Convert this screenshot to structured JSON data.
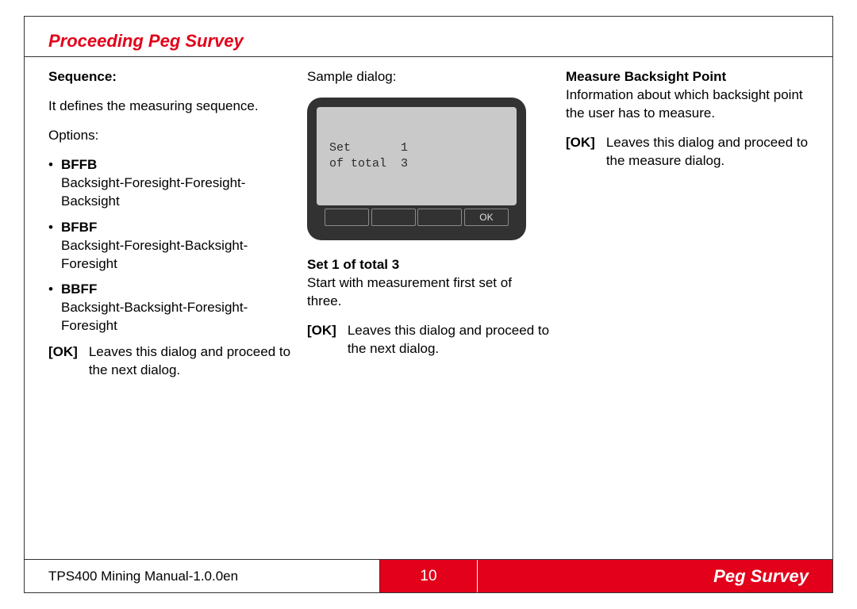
{
  "title": "Proceeding Peg Survey",
  "col1": {
    "heading": "Sequence:",
    "intro": "It defines the measuring sequence.",
    "options_label": "Options:",
    "options": [
      {
        "code": "BFFB",
        "desc": "Backsight-Foresight-Foresight-Backsight"
      },
      {
        "code": "BFBF",
        "desc": "Backsight-Foresight-Backsight-Foresight"
      },
      {
        "code": "BBFF",
        "desc": "Backsight-Backsight-Foresight-Foresight"
      }
    ],
    "ok_label": "[OK]",
    "ok_desc": "Leaves this dialog and proceed to the next dialog."
  },
  "col2": {
    "heading": "Sample dialog:",
    "dialog": {
      "line1_label": "Set",
      "line1_value": "1",
      "line2_label": "of total",
      "line2_value": "3",
      "soft4": "OK"
    },
    "set_heading": "Set 1 of total 3",
    "set_desc": "Start with measurement first set of three.",
    "ok_label": "[OK]",
    "ok_desc": "Leaves this dialog and proceed to the next dialog."
  },
  "col3": {
    "heading": "Measure Backsight Point",
    "desc": "Information about which backsight point the user has to measure.",
    "ok_label": "[OK]",
    "ok_desc": "Leaves this dialog and proceed to the measure dialog."
  },
  "footer": {
    "left": "TPS400 Mining Manual-1.0.0en",
    "page": "10",
    "section": "Peg Survey"
  }
}
